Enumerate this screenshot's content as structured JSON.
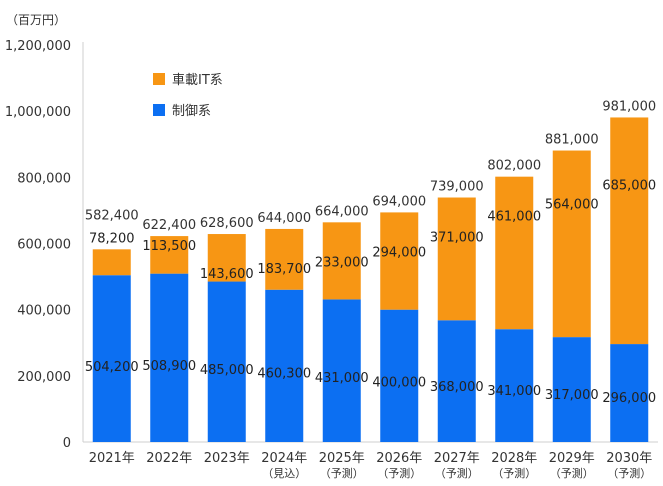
{
  "chart_data": {
    "type": "stacked-bar",
    "unit_label": "（百万円）",
    "categories": [
      "2021年",
      "2022年",
      "2023年",
      "2024年",
      "2025年",
      "2026年",
      "2027年",
      "2028年",
      "2029年",
      "2030年"
    ],
    "category_notes": [
      "",
      "",
      "",
      "（見込）",
      "（予測）",
      "（予測）",
      "（予測）",
      "（予測）",
      "（予測）",
      "（予測）"
    ],
    "series": [
      {
        "name": "制御系",
        "color": "#0c6ff2",
        "values": [
          504200,
          508900,
          485000,
          460300,
          431000,
          400000,
          368000,
          341000,
          317000,
          296000
        ]
      },
      {
        "name": "車載IT系",
        "color": "#f79614",
        "values": [
          78200,
          113500,
          143600,
          183700,
          233000,
          294000,
          371000,
          461000,
          564000,
          685000
        ]
      }
    ],
    "totals": [
      582400,
      622400,
      628600,
      644000,
      664000,
      694000,
      739000,
      802000,
      881000,
      981000
    ],
    "y_ticks": [
      "0",
      "200,000",
      "400,000",
      "600,000",
      "800,000",
      "1,000,000",
      "1,200,000"
    ],
    "ylim": [
      0,
      1200000
    ],
    "legend": [
      "車載IT系",
      "制御系"
    ],
    "legend_position": "top-left"
  }
}
